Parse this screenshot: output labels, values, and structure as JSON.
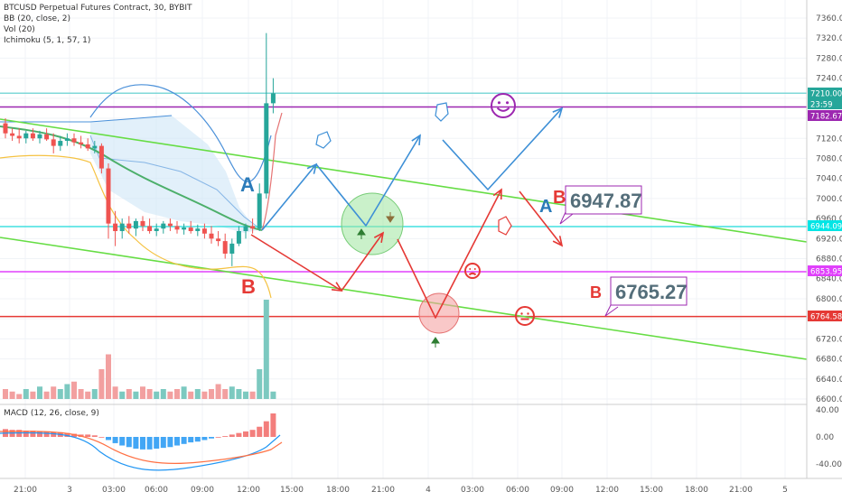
{
  "chart_data": {
    "type": "candlestick",
    "title": "BTCUSD Perpetual Futures Contract, 30, BYBIT",
    "indicators": [
      "BB (20, close, 2)",
      "Vol (20)",
      "Ichimoku (5, 1, 57, 1)"
    ],
    "macd_label": "MACD (12, 26, close, 9)",
    "price_ticks": [
      "7360.00",
      "7320.00",
      "7280.00",
      "7240.00",
      "7200.00",
      "7160.00",
      "7120.00",
      "7080.00",
      "7040.00",
      "7000.00",
      "6960.00",
      "6920.00",
      "6880.00",
      "6840.00",
      "6800.00",
      "6760.00",
      "6720.00",
      "6680.00",
      "6640.00",
      "6600.00"
    ],
    "macd_ticks": [
      "40.00",
      "0.00",
      "-40.00"
    ],
    "time_ticks": [
      "21:00",
      "3",
      "03:00",
      "06:00",
      "09:00",
      "12:00",
      "15:00",
      "18:00",
      "21:00",
      "4",
      "03:00",
      "06:00",
      "09:00",
      "12:00",
      "15:00",
      "18:00",
      "21:00",
      "5"
    ],
    "price_badges": [
      {
        "text": "7210.00",
        "color": "#26a69a"
      },
      {
        "text": "23:59",
        "color": "#26a69a"
      },
      {
        "text": "7182.67",
        "color": "#9c27b0"
      },
      {
        "text": "6944.09",
        "color": "#00e5e5"
      },
      {
        "text": "6853.95",
        "color": "#e040fb"
      },
      {
        "text": "6764.58",
        "color": "#e53935"
      }
    ],
    "horizontal_levels": [
      {
        "price": 7210,
        "color": "#7fd8d8"
      },
      {
        "price": 7182.67,
        "color": "#9c27b0"
      },
      {
        "price": 6944.09,
        "color": "#40e0e0"
      },
      {
        "price": 6853.95,
        "color": "#e040fb"
      },
      {
        "price": 6764.58,
        "color": "#e53935"
      }
    ],
    "candles": [
      {
        "o": 7150,
        "h": 7160,
        "l": 7120,
        "c": 7130
      },
      {
        "o": 7130,
        "h": 7140,
        "l": 7115,
        "c": 7125
      },
      {
        "o": 7125,
        "h": 7140,
        "l": 7110,
        "c": 7120
      },
      {
        "o": 7120,
        "h": 7135,
        "l": 7110,
        "c": 7130
      },
      {
        "o": 7130,
        "h": 7140,
        "l": 7115,
        "c": 7120
      },
      {
        "o": 7120,
        "h": 7135,
        "l": 7110,
        "c": 7128
      },
      {
        "o": 7128,
        "h": 7140,
        "l": 7115,
        "c": 7118
      },
      {
        "o": 7118,
        "h": 7130,
        "l": 7090,
        "c": 7105
      },
      {
        "o": 7105,
        "h": 7125,
        "l": 7095,
        "c": 7115
      },
      {
        "o": 7115,
        "h": 7130,
        "l": 7105,
        "c": 7120
      },
      {
        "o": 7120,
        "h": 7130,
        "l": 7105,
        "c": 7112
      },
      {
        "o": 7112,
        "h": 7125,
        "l": 7100,
        "c": 7108
      },
      {
        "o": 7108,
        "h": 7120,
        "l": 7095,
        "c": 7100
      },
      {
        "o": 7100,
        "h": 7115,
        "l": 7090,
        "c": 7105
      },
      {
        "o": 7105,
        "h": 7110,
        "l": 7050,
        "c": 7060
      },
      {
        "o": 7060,
        "h": 7070,
        "l": 6920,
        "c": 6950
      },
      {
        "o": 6950,
        "h": 6975,
        "l": 6905,
        "c": 6935
      },
      {
        "o": 6935,
        "h": 6960,
        "l": 6920,
        "c": 6950
      },
      {
        "o": 6950,
        "h": 6965,
        "l": 6930,
        "c": 6940
      },
      {
        "o": 6940,
        "h": 6960,
        "l": 6925,
        "c": 6955
      },
      {
        "o": 6955,
        "h": 6965,
        "l": 6935,
        "c": 6945
      },
      {
        "o": 6945,
        "h": 6960,
        "l": 6930,
        "c": 6935
      },
      {
        "o": 6935,
        "h": 6950,
        "l": 6925,
        "c": 6940
      },
      {
        "o": 6940,
        "h": 6955,
        "l": 6930,
        "c": 6950
      },
      {
        "o": 6950,
        "h": 6960,
        "l": 6935,
        "c": 6945
      },
      {
        "o": 6945,
        "h": 6955,
        "l": 6930,
        "c": 6938
      },
      {
        "o": 6938,
        "h": 6950,
        "l": 6928,
        "c": 6942
      },
      {
        "o": 6942,
        "h": 6955,
        "l": 6930,
        "c": 6935
      },
      {
        "o": 6935,
        "h": 6948,
        "l": 6925,
        "c": 6940
      },
      {
        "o": 6940,
        "h": 6950,
        "l": 6920,
        "c": 6930
      },
      {
        "o": 6930,
        "h": 6945,
        "l": 6910,
        "c": 6920
      },
      {
        "o": 6920,
        "h": 6935,
        "l": 6905,
        "c": 6915
      },
      {
        "o": 6915,
        "h": 6930,
        "l": 6880,
        "c": 6890
      },
      {
        "o": 6890,
        "h": 6920,
        "l": 6865,
        "c": 6910
      },
      {
        "o": 6910,
        "h": 6945,
        "l": 6905,
        "c": 6935
      },
      {
        "o": 6935,
        "h": 6950,
        "l": 6920,
        "c": 6945
      },
      {
        "o": 6945,
        "h": 6960,
        "l": 6930,
        "c": 6940
      },
      {
        "o": 6940,
        "h": 7030,
        "l": 6935,
        "c": 7010
      },
      {
        "o": 7010,
        "h": 7330,
        "l": 7000,
        "c": 7190
      },
      {
        "o": 7190,
        "h": 7240,
        "l": 7170,
        "c": 7210
      }
    ],
    "volumes": [
      4,
      3,
      2,
      4,
      3,
      5,
      3,
      5,
      4,
      6,
      7,
      4,
      3,
      4,
      12,
      18,
      5,
      3,
      4,
      3,
      5,
      4,
      3,
      4,
      3,
      4,
      5,
      3,
      4,
      3,
      4,
      6,
      4,
      5,
      4,
      3,
      3,
      12,
      40,
      3
    ],
    "macd_hist": [
      10,
      9,
      9,
      8,
      8,
      7,
      7,
      6,
      6,
      5,
      4,
      3,
      3,
      2,
      0,
      -4,
      -8,
      -11,
      -13,
      -15,
      -16,
      -16,
      -15,
      -14,
      -13,
      -11,
      -9,
      -7,
      -6,
      -4,
      -2,
      0,
      1,
      3,
      5,
      7,
      9,
      13,
      20,
      30
    ],
    "annotations": {
      "label_A1": "A",
      "label_B1": "B",
      "label_A2": "A",
      "label_B2": "B",
      "label_B3": "B",
      "target_high": "6947.87",
      "target_low": "6765.27"
    }
  }
}
